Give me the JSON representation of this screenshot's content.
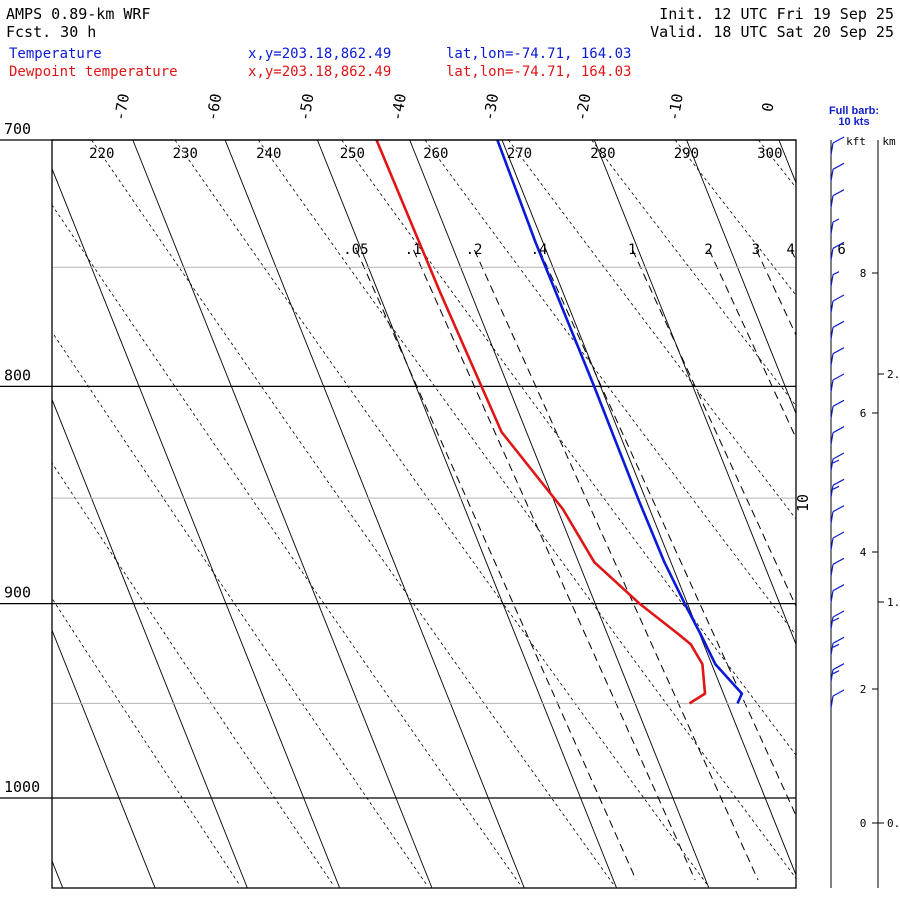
{
  "header": {
    "model": "AMPS 0.89-km WRF",
    "fcst": "Fcst.    30 h",
    "init": "Init. 12 UTC Fri 19 Sep 25",
    "valid": "Valid. 18 UTC Sat 20 Sep 25",
    "temp_label": "Temperature",
    "dew_label": "Dewpoint temperature",
    "temp_xy": "x,y=203.18,862.49",
    "dew_xy": "x,y=203.18,862.49",
    "temp_latlon": "lat,lon=-74.71, 164.03",
    "dew_latlon": "lat,lon=-74.71, 164.03"
  },
  "colors": {
    "temperature": "#0a1ad8",
    "dewpoint": "#e01515",
    "labels": "#1020c8"
  },
  "wind_panel": {
    "legend_line1": "Full barb:",
    "legend_line2": "10 kts",
    "unit_kft": "kft",
    "unit_km": "km",
    "kft_ticks": [
      "8",
      "6",
      "4",
      "2",
      "0"
    ],
    "km_ticks": [
      "2.",
      "1.",
      "0."
    ],
    "side_label": "10"
  },
  "chart_data": {
    "type": "line",
    "skew_t_log_p": true,
    "y_axis": {
      "pressure_labels": [
        "700",
        "800",
        "900",
        "1000"
      ],
      "ylim": [
        1050,
        700
      ]
    },
    "isotherm_labels": [
      "-70",
      "-60",
      "-50",
      "-40",
      "-30",
      "-20",
      "-10",
      "0"
    ],
    "dry_adiabat_labels": [
      "220",
      "230",
      "240",
      "250",
      "260",
      "270",
      "280",
      "290",
      "300"
    ],
    "mixing_ratio_labels": [
      ".05",
      ".1",
      ".2",
      ".4",
      "1",
      "2",
      "3",
      "4",
      "6"
    ],
    "series": [
      {
        "name": "Temperature",
        "points": [
          {
            "p": 700,
            "t": -30.5
          },
          {
            "p": 740,
            "t": -30.8
          },
          {
            "p": 800,
            "t": -30.7
          },
          {
            "p": 850,
            "t": -30.8
          },
          {
            "p": 880,
            "t": -30.7
          },
          {
            "p": 900,
            "t": -30.3
          },
          {
            "p": 915,
            "t": -29.9
          },
          {
            "p": 930,
            "t": -29.6
          },
          {
            "p": 945,
            "t": -28.0
          },
          {
            "p": 950,
            "t": -28.9
          }
        ]
      },
      {
        "name": "Dewpoint temperature",
        "points": [
          {
            "p": 700,
            "t": -43.6
          },
          {
            "p": 760,
            "t": -43.3
          },
          {
            "p": 820,
            "t": -42.7
          },
          {
            "p": 855,
            "t": -39.4
          },
          {
            "p": 880,
            "t": -38.3
          },
          {
            "p": 900,
            "t": -35.2
          },
          {
            "p": 915,
            "t": -32.3
          },
          {
            "p": 920,
            "t": -31.4
          },
          {
            "p": 930,
            "t": -31.0
          },
          {
            "p": 945,
            "t": -32.0
          },
          {
            "p": 950,
            "t": -34.1
          }
        ]
      }
    ],
    "wind_speeds_kt": [
      10,
      10,
      10,
      8,
      10,
      8,
      10,
      12,
      10,
      10,
      10,
      12,
      15,
      15,
      10,
      10,
      12,
      12,
      15,
      15,
      15,
      10
    ]
  }
}
